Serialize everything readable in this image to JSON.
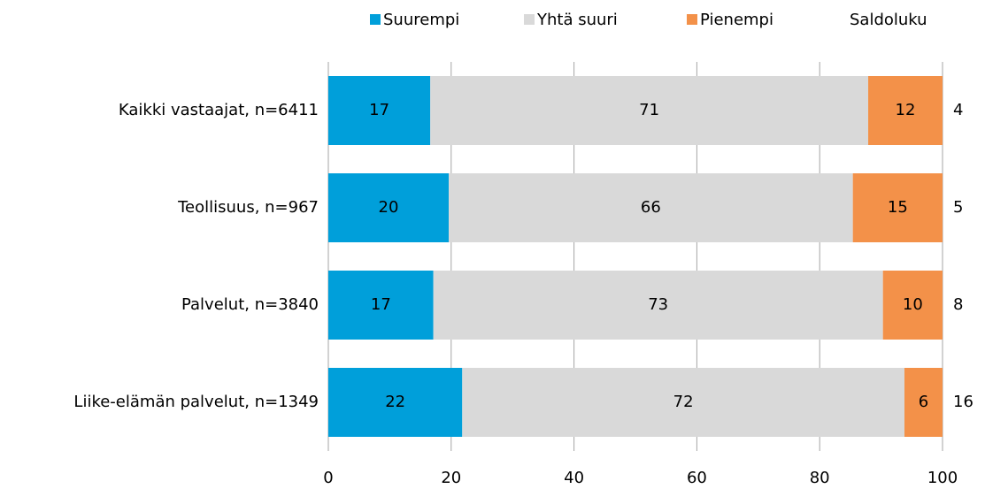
{
  "chart_data": {
    "type": "stacked-bar-horizontal",
    "categories": [
      "Kaikki vastaajat, n=6411",
      "Teollisuus, n=967",
      "Palvelut, n=3840",
      "Liike-elämän palvelut, n=1349"
    ],
    "series": [
      {
        "name": "Suurempi",
        "color": "#009fda",
        "values": [
          16.6,
          19.6,
          17.1,
          21.8
        ],
        "value_labels": [
          "17",
          "20",
          "17",
          "22"
        ]
      },
      {
        "name": "Yhtä suuri",
        "color": "#d9d9d9",
        "values": [
          71.3,
          65.8,
          73.2,
          72.0
        ],
        "value_labels": [
          "71",
          "66",
          "73",
          "72"
        ]
      },
      {
        "name": "Pienempi",
        "color": "#f39149",
        "values": [
          12.1,
          14.6,
          9.7,
          6.2
        ],
        "value_labels": [
          "12",
          "15",
          "10",
          "6"
        ]
      }
    ],
    "saldo": {
      "name": "Saldoluku",
      "values": [
        4,
        5,
        8,
        16
      ]
    },
    "xlim": [
      0,
      100
    ],
    "xticks": [
      0,
      20,
      40,
      60,
      80,
      100
    ],
    "grid": true
  }
}
